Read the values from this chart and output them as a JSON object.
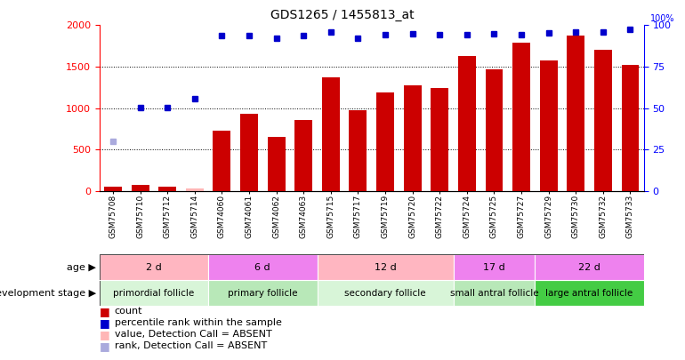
{
  "title": "GDS1265 / 1455813_at",
  "samples": [
    "GSM75708",
    "GSM75710",
    "GSM75712",
    "GSM75714",
    "GSM74060",
    "GSM74061",
    "GSM74062",
    "GSM74063",
    "GSM75715",
    "GSM75717",
    "GSM75719",
    "GSM75720",
    "GSM75722",
    "GSM75724",
    "GSM75725",
    "GSM75727",
    "GSM75729",
    "GSM75730",
    "GSM75732",
    "GSM75733"
  ],
  "count_values": [
    50,
    80,
    50,
    30,
    730,
    930,
    650,
    860,
    1370,
    980,
    1190,
    1270,
    1240,
    1630,
    1470,
    1790,
    1580,
    1880,
    1700,
    1520
  ],
  "absent_count": [
    false,
    false,
    false,
    true,
    false,
    false,
    false,
    false,
    false,
    false,
    false,
    false,
    false,
    false,
    false,
    false,
    false,
    false,
    false,
    false
  ],
  "percentile_rank_y": [
    null,
    1010,
    1010,
    1110,
    1870,
    1870,
    1840,
    1880,
    1920,
    1840,
    1890,
    1900,
    1890,
    1890,
    1900,
    1890,
    1910,
    1920,
    1920,
    1950
  ],
  "absent_rank_y": [
    600,
    null,
    null,
    null,
    null,
    null,
    null,
    null,
    null,
    null,
    null,
    null,
    null,
    null,
    null,
    null,
    null,
    null,
    null,
    null
  ],
  "groups": [
    {
      "label": "primordial follicle",
      "bg1": "#d8f5d8",
      "bg2": "#d8f5d8",
      "start": 0,
      "end": 4
    },
    {
      "label": "primary follicle",
      "bg1": "#b8e8b8",
      "bg2": "#b8e8b8",
      "start": 4,
      "end": 8
    },
    {
      "label": "secondary follicle",
      "bg1": "#d8f5d8",
      "bg2": "#d8f5d8",
      "start": 8,
      "end": 13
    },
    {
      "label": "small antral follicle",
      "bg1": "#b8e8b8",
      "bg2": "#b8e8b8",
      "start": 13,
      "end": 16
    },
    {
      "label": "large antral follicle",
      "bg1": "#44cc44",
      "bg2": "#44cc44",
      "start": 16,
      "end": 20
    }
  ],
  "group_colors": [
    "#d8f5d8",
    "#b8e8b8",
    "#d8f5d8",
    "#b8e8b8",
    "#44cc44"
  ],
  "ages": [
    {
      "label": "2 d",
      "color": "#ffb6c1",
      "start": 0,
      "end": 4
    },
    {
      "label": "6 d",
      "color": "#ee82ee",
      "start": 4,
      "end": 8
    },
    {
      "label": "12 d",
      "color": "#ffb6c1",
      "start": 8,
      "end": 13
    },
    {
      "label": "17 d",
      "color": "#ee82ee",
      "start": 13,
      "end": 16
    },
    {
      "label": "22 d",
      "color": "#ee82ee",
      "start": 16,
      "end": 20
    }
  ],
  "ylim_left": [
    0,
    2000
  ],
  "ylim_right": [
    0,
    100
  ],
  "yticks_left": [
    0,
    500,
    1000,
    1500,
    2000
  ],
  "yticks_right": [
    0,
    25,
    50,
    75,
    100
  ],
  "bar_color": "#cc0000",
  "absent_bar_color": "#ffb6b6",
  "dot_color": "#0000cc",
  "absent_dot_color": "#aaaadd",
  "hline_vals": [
    500,
    1000,
    1500
  ],
  "legend_items": [
    {
      "symbol": "s",
      "color": "#cc0000",
      "label": "count"
    },
    {
      "symbol": "s",
      "color": "#0000cc",
      "label": "percentile rank within the sample"
    },
    {
      "symbol": "s",
      "color": "#ffb6b6",
      "label": "value, Detection Call = ABSENT"
    },
    {
      "symbol": "s",
      "color": "#aaaadd",
      "label": "rank, Detection Call = ABSENT"
    }
  ]
}
